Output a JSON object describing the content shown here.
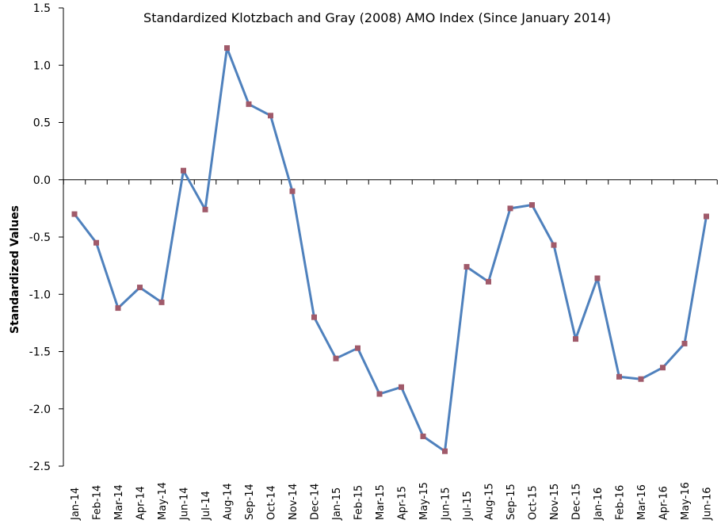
{
  "chart_data": {
    "type": "line",
    "title": "Standardized Klotzbach and Gray (2008) AMO Index (Since January 2014)",
    "xlabel": "",
    "ylabel": "Standardized Values",
    "ylim": [
      -2.5,
      1.5
    ],
    "yticks": [
      "1.5",
      "1.0",
      "0.5",
      "0.0",
      "-0.5",
      "-1.0",
      "-1.5",
      "-2.0",
      "-2.5"
    ],
    "grid": false,
    "legend": "none",
    "line_color": "#4f81bd",
    "marker_color": "#a05a6a",
    "categories": [
      "Jan-14",
      "Feb-14",
      "Mar-14",
      "Apr-14",
      "May-14",
      "Jun-14",
      "Jul-14",
      "Aug-14",
      "Sep-14",
      "Oct-14",
      "Nov-14",
      "Dec-14",
      "Jan-15",
      "Feb-15",
      "Mar-15",
      "Apr-15",
      "May-15",
      "Jun-15",
      "Jul-15",
      "Aug-15",
      "Sep-15",
      "Oct-15",
      "Nov-15",
      "Dec-15",
      "Jan-16",
      "Feb-16",
      "Mar-16",
      "Apr-16",
      "May-16",
      "Jun-16"
    ],
    "series": [
      {
        "values": [
          -0.3,
          -0.55,
          -1.12,
          -0.94,
          -1.07,
          0.08,
          -0.26,
          1.15,
          0.66,
          0.56,
          -0.1,
          -1.2,
          -1.56,
          -1.47,
          -1.87,
          -1.81,
          -2.24,
          -2.37,
          -0.76,
          -0.89,
          -0.25,
          -0.22,
          -0.57,
          -1.39,
          -0.86,
          -1.72,
          -1.74,
          -1.64,
          -1.43,
          -0.32
        ]
      }
    ]
  }
}
